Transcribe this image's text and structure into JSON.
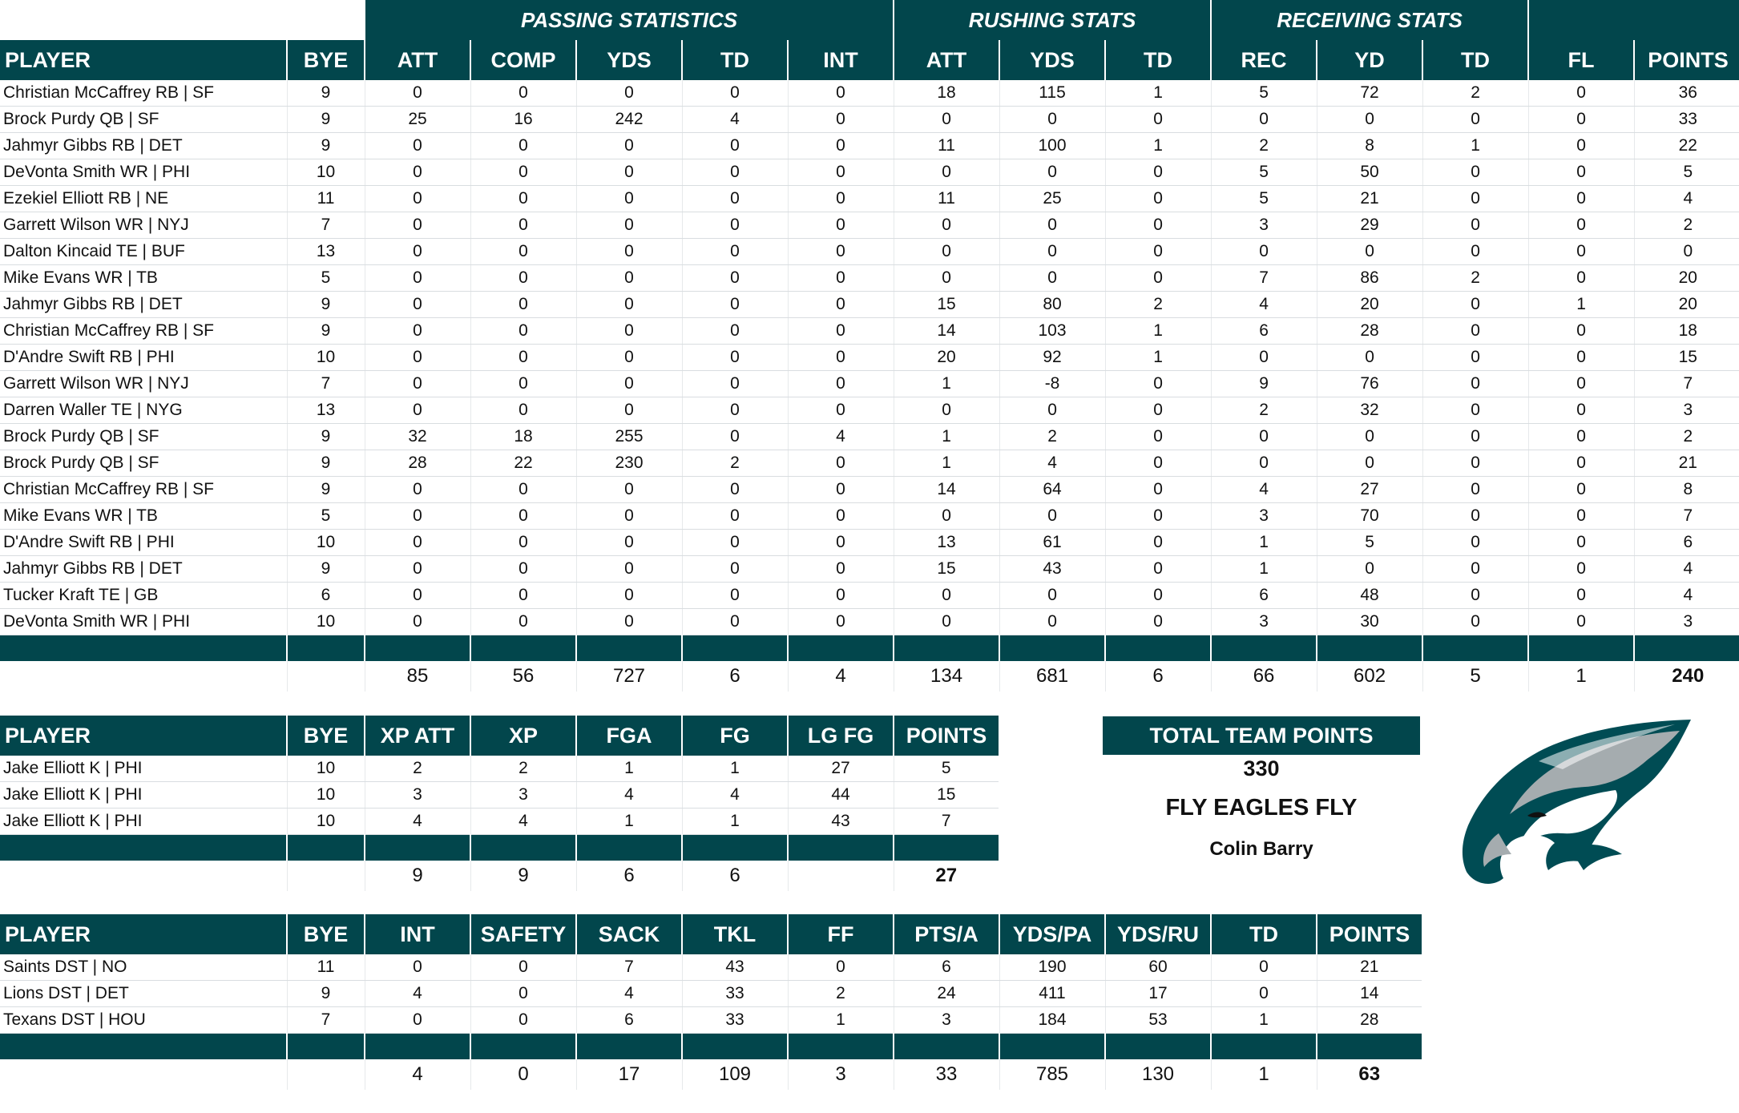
{
  "main_table": {
    "group_headers": [
      "PASSING STATISTICS",
      "RUSHING STATS",
      "RECEIVING STATS"
    ],
    "columns": [
      "PLAYER",
      "BYE",
      "ATT",
      "COMP",
      "YDS",
      "TD",
      "INT",
      "ATT",
      "YDS",
      "TD",
      "REC",
      "YD",
      "TD",
      "FL",
      "POINTS"
    ],
    "rows": [
      [
        "Christian McCaffrey RB | SF",
        "9",
        "0",
        "0",
        "0",
        "0",
        "0",
        "18",
        "115",
        "1",
        "5",
        "72",
        "2",
        "0",
        "36"
      ],
      [
        "Brock Purdy QB | SF",
        "9",
        "25",
        "16",
        "242",
        "4",
        "0",
        "0",
        "0",
        "0",
        "0",
        "0",
        "0",
        "0",
        "33"
      ],
      [
        "Jahmyr Gibbs RB | DET",
        "9",
        "0",
        "0",
        "0",
        "0",
        "0",
        "11",
        "100",
        "1",
        "2",
        "8",
        "1",
        "0",
        "22"
      ],
      [
        "DeVonta Smith WR | PHI",
        "10",
        "0",
        "0",
        "0",
        "0",
        "0",
        "0",
        "0",
        "0",
        "5",
        "50",
        "0",
        "0",
        "5"
      ],
      [
        "Ezekiel Elliott RB | NE",
        "11",
        "0",
        "0",
        "0",
        "0",
        "0",
        "11",
        "25",
        "0",
        "5",
        "21",
        "0",
        "0",
        "4"
      ],
      [
        "Garrett Wilson WR | NYJ",
        "7",
        "0",
        "0",
        "0",
        "0",
        "0",
        "0",
        "0",
        "0",
        "3",
        "29",
        "0",
        "0",
        "2"
      ],
      [
        "Dalton Kincaid TE | BUF",
        "13",
        "0",
        "0",
        "0",
        "0",
        "0",
        "0",
        "0",
        "0",
        "0",
        "0",
        "0",
        "0",
        "0"
      ],
      [
        "Mike Evans WR | TB",
        "5",
        "0",
        "0",
        "0",
        "0",
        "0",
        "0",
        "0",
        "0",
        "7",
        "86",
        "2",
        "0",
        "20"
      ],
      [
        "Jahmyr Gibbs RB | DET",
        "9",
        "0",
        "0",
        "0",
        "0",
        "0",
        "15",
        "80",
        "2",
        "4",
        "20",
        "0",
        "1",
        "20"
      ],
      [
        "Christian McCaffrey RB | SF",
        "9",
        "0",
        "0",
        "0",
        "0",
        "0",
        "14",
        "103",
        "1",
        "6",
        "28",
        "0",
        "0",
        "18"
      ],
      [
        "D'Andre Swift RB | PHI",
        "10",
        "0",
        "0",
        "0",
        "0",
        "0",
        "20",
        "92",
        "1",
        "0",
        "0",
        "0",
        "0",
        "15"
      ],
      [
        "Garrett Wilson WR | NYJ",
        "7",
        "0",
        "0",
        "0",
        "0",
        "0",
        "1",
        "-8",
        "0",
        "9",
        "76",
        "0",
        "0",
        "7"
      ],
      [
        "Darren Waller TE | NYG",
        "13",
        "0",
        "0",
        "0",
        "0",
        "0",
        "0",
        "0",
        "0",
        "2",
        "32",
        "0",
        "0",
        "3"
      ],
      [
        "Brock Purdy QB | SF",
        "9",
        "32",
        "18",
        "255",
        "0",
        "4",
        "1",
        "2",
        "0",
        "0",
        "0",
        "0",
        "0",
        "2"
      ],
      [
        "Brock Purdy QB | SF",
        "9",
        "28",
        "22",
        "230",
        "2",
        "0",
        "1",
        "4",
        "0",
        "0",
        "0",
        "0",
        "0",
        "21"
      ],
      [
        "Christian McCaffrey RB | SF",
        "9",
        "0",
        "0",
        "0",
        "0",
        "0",
        "14",
        "64",
        "0",
        "4",
        "27",
        "0",
        "0",
        "8"
      ],
      [
        "Mike Evans WR | TB",
        "5",
        "0",
        "0",
        "0",
        "0",
        "0",
        "0",
        "0",
        "0",
        "3",
        "70",
        "0",
        "0",
        "7"
      ],
      [
        "D'Andre Swift RB | PHI",
        "10",
        "0",
        "0",
        "0",
        "0",
        "0",
        "13",
        "61",
        "0",
        "1",
        "5",
        "0",
        "0",
        "6"
      ],
      [
        "Jahmyr Gibbs RB | DET",
        "9",
        "0",
        "0",
        "0",
        "0",
        "0",
        "15",
        "43",
        "0",
        "1",
        "0",
        "0",
        "0",
        "4"
      ],
      [
        "Tucker Kraft TE | GB",
        "6",
        "0",
        "0",
        "0",
        "0",
        "0",
        "0",
        "0",
        "0",
        "6",
        "48",
        "0",
        "0",
        "4"
      ],
      [
        "DeVonta Smith WR | PHI",
        "10",
        "0",
        "0",
        "0",
        "0",
        "0",
        "0",
        "0",
        "0",
        "3",
        "30",
        "0",
        "0",
        "3"
      ]
    ],
    "totals": [
      "",
      "",
      "85",
      "56",
      "727",
      "6",
      "4",
      "134",
      "681",
      "6",
      "66",
      "602",
      "5",
      "1",
      "240"
    ]
  },
  "kicker_table": {
    "columns": [
      "PLAYER",
      "BYE",
      "XP ATT",
      "XP",
      "FGA",
      "FG",
      "LG FG",
      "POINTS"
    ],
    "rows": [
      [
        "Jake Elliott K | PHI",
        "10",
        "2",
        "2",
        "1",
        "1",
        "27",
        "5"
      ],
      [
        "Jake Elliott K | PHI",
        "10",
        "3",
        "3",
        "4",
        "4",
        "44",
        "15"
      ],
      [
        "Jake Elliott K | PHI",
        "10",
        "4",
        "4",
        "1",
        "1",
        "43",
        "7"
      ]
    ],
    "totals": [
      "",
      "",
      "9",
      "9",
      "6",
      "6",
      "",
      "27"
    ]
  },
  "dst_table": {
    "columns": [
      "PLAYER",
      "BYE",
      "INT",
      "SAFETY",
      "SACK",
      "TKL",
      "FF",
      "PTS/A",
      "YDS/PA",
      "YDS/RU",
      "TD",
      "POINTS"
    ],
    "rows": [
      [
        "Saints DST | NO",
        "11",
        "0",
        "0",
        "7",
        "43",
        "0",
        "6",
        "190",
        "60",
        "0",
        "21"
      ],
      [
        "Lions DST | DET",
        "9",
        "4",
        "0",
        "4",
        "33",
        "2",
        "24",
        "411",
        "17",
        "0",
        "14"
      ],
      [
        "Texans DST | HOU",
        "7",
        "0",
        "0",
        "6",
        "33",
        "1",
        "3",
        "184",
        "53",
        "1",
        "28"
      ]
    ],
    "totals": [
      "",
      "",
      "4",
      "0",
      "17",
      "109",
      "3",
      "33",
      "785",
      "130",
      "1",
      "63"
    ]
  },
  "team_panel": {
    "title": "TOTAL TEAM POINTS",
    "total": "330",
    "slogan": "FLY EAGLES FLY",
    "owner": "Colin Barry"
  },
  "logo": {
    "icon": "eagle-head-icon"
  },
  "colors": {
    "header": "#02464c",
    "logo_dark": "#004c54",
    "logo_silver": "#a5acaf"
  }
}
